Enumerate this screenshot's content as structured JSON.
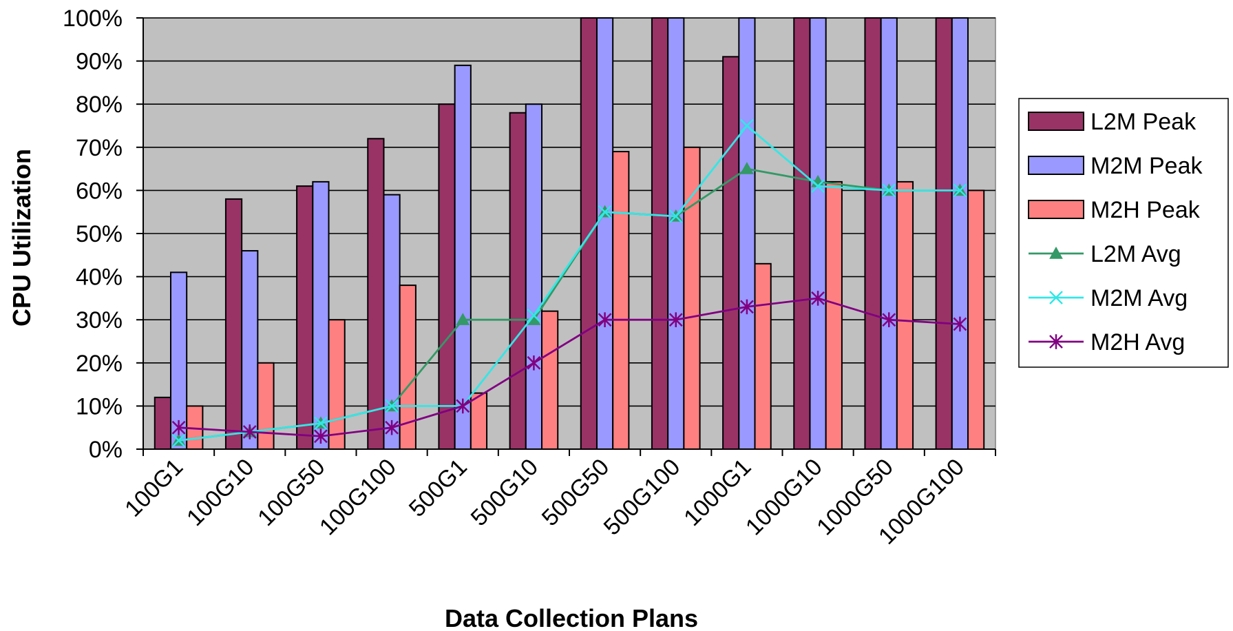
{
  "chart_data": {
    "type": "bar",
    "xlabel": "Data Collection Plans",
    "ylabel": "CPU Utilization",
    "ylim": [
      0,
      100
    ],
    "y_ticks": [
      0,
      10,
      20,
      30,
      40,
      50,
      60,
      70,
      80,
      90,
      100
    ],
    "y_tick_labels": [
      "0%",
      "10%",
      "20%",
      "30%",
      "40%",
      "50%",
      "60%",
      "70%",
      "80%",
      "90%",
      "100%"
    ],
    "categories": [
      "100G1",
      "100G10",
      "100G50",
      "100G100",
      "500G1",
      "500G10",
      "500G50",
      "500G100",
      "1000G1",
      "1000G10",
      "1000G50",
      "1000G100"
    ],
    "grid": true,
    "plot_background": "#c0c0c0",
    "legend_position": "right",
    "series": [
      {
        "name": "L2M Peak",
        "kind": "bar",
        "color": "#993366",
        "values": [
          12,
          58,
          61,
          72,
          80,
          78,
          100,
          100,
          91,
          100,
          100,
          100
        ]
      },
      {
        "name": "M2M Peak",
        "kind": "bar",
        "color": "#9999ff",
        "values": [
          41,
          46,
          62,
          59,
          89,
          80,
          100,
          100,
          100,
          100,
          100,
          100
        ]
      },
      {
        "name": "M2H Peak",
        "kind": "bar",
        "color": "#ff8080",
        "values": [
          10,
          20,
          30,
          38,
          13,
          32,
          69,
          70,
          43,
          62,
          62,
          60
        ]
      },
      {
        "name": "L2M Avg",
        "kind": "line",
        "marker": "triangle",
        "color": "#339966",
        "values": [
          2,
          4,
          6,
          10,
          30,
          30,
          55,
          54,
          65,
          62,
          60,
          60
        ]
      },
      {
        "name": "M2M Avg",
        "kind": "line",
        "marker": "x",
        "color": "#33e6e6",
        "values": [
          2,
          4,
          6,
          10,
          10,
          31,
          55,
          54,
          75,
          61,
          60,
          60
        ]
      },
      {
        "name": "M2H Avg",
        "kind": "line",
        "marker": "star",
        "color": "#800080",
        "values": [
          5,
          4,
          3,
          5,
          10,
          20,
          30,
          30,
          33,
          35,
          30,
          29
        ]
      }
    ]
  }
}
